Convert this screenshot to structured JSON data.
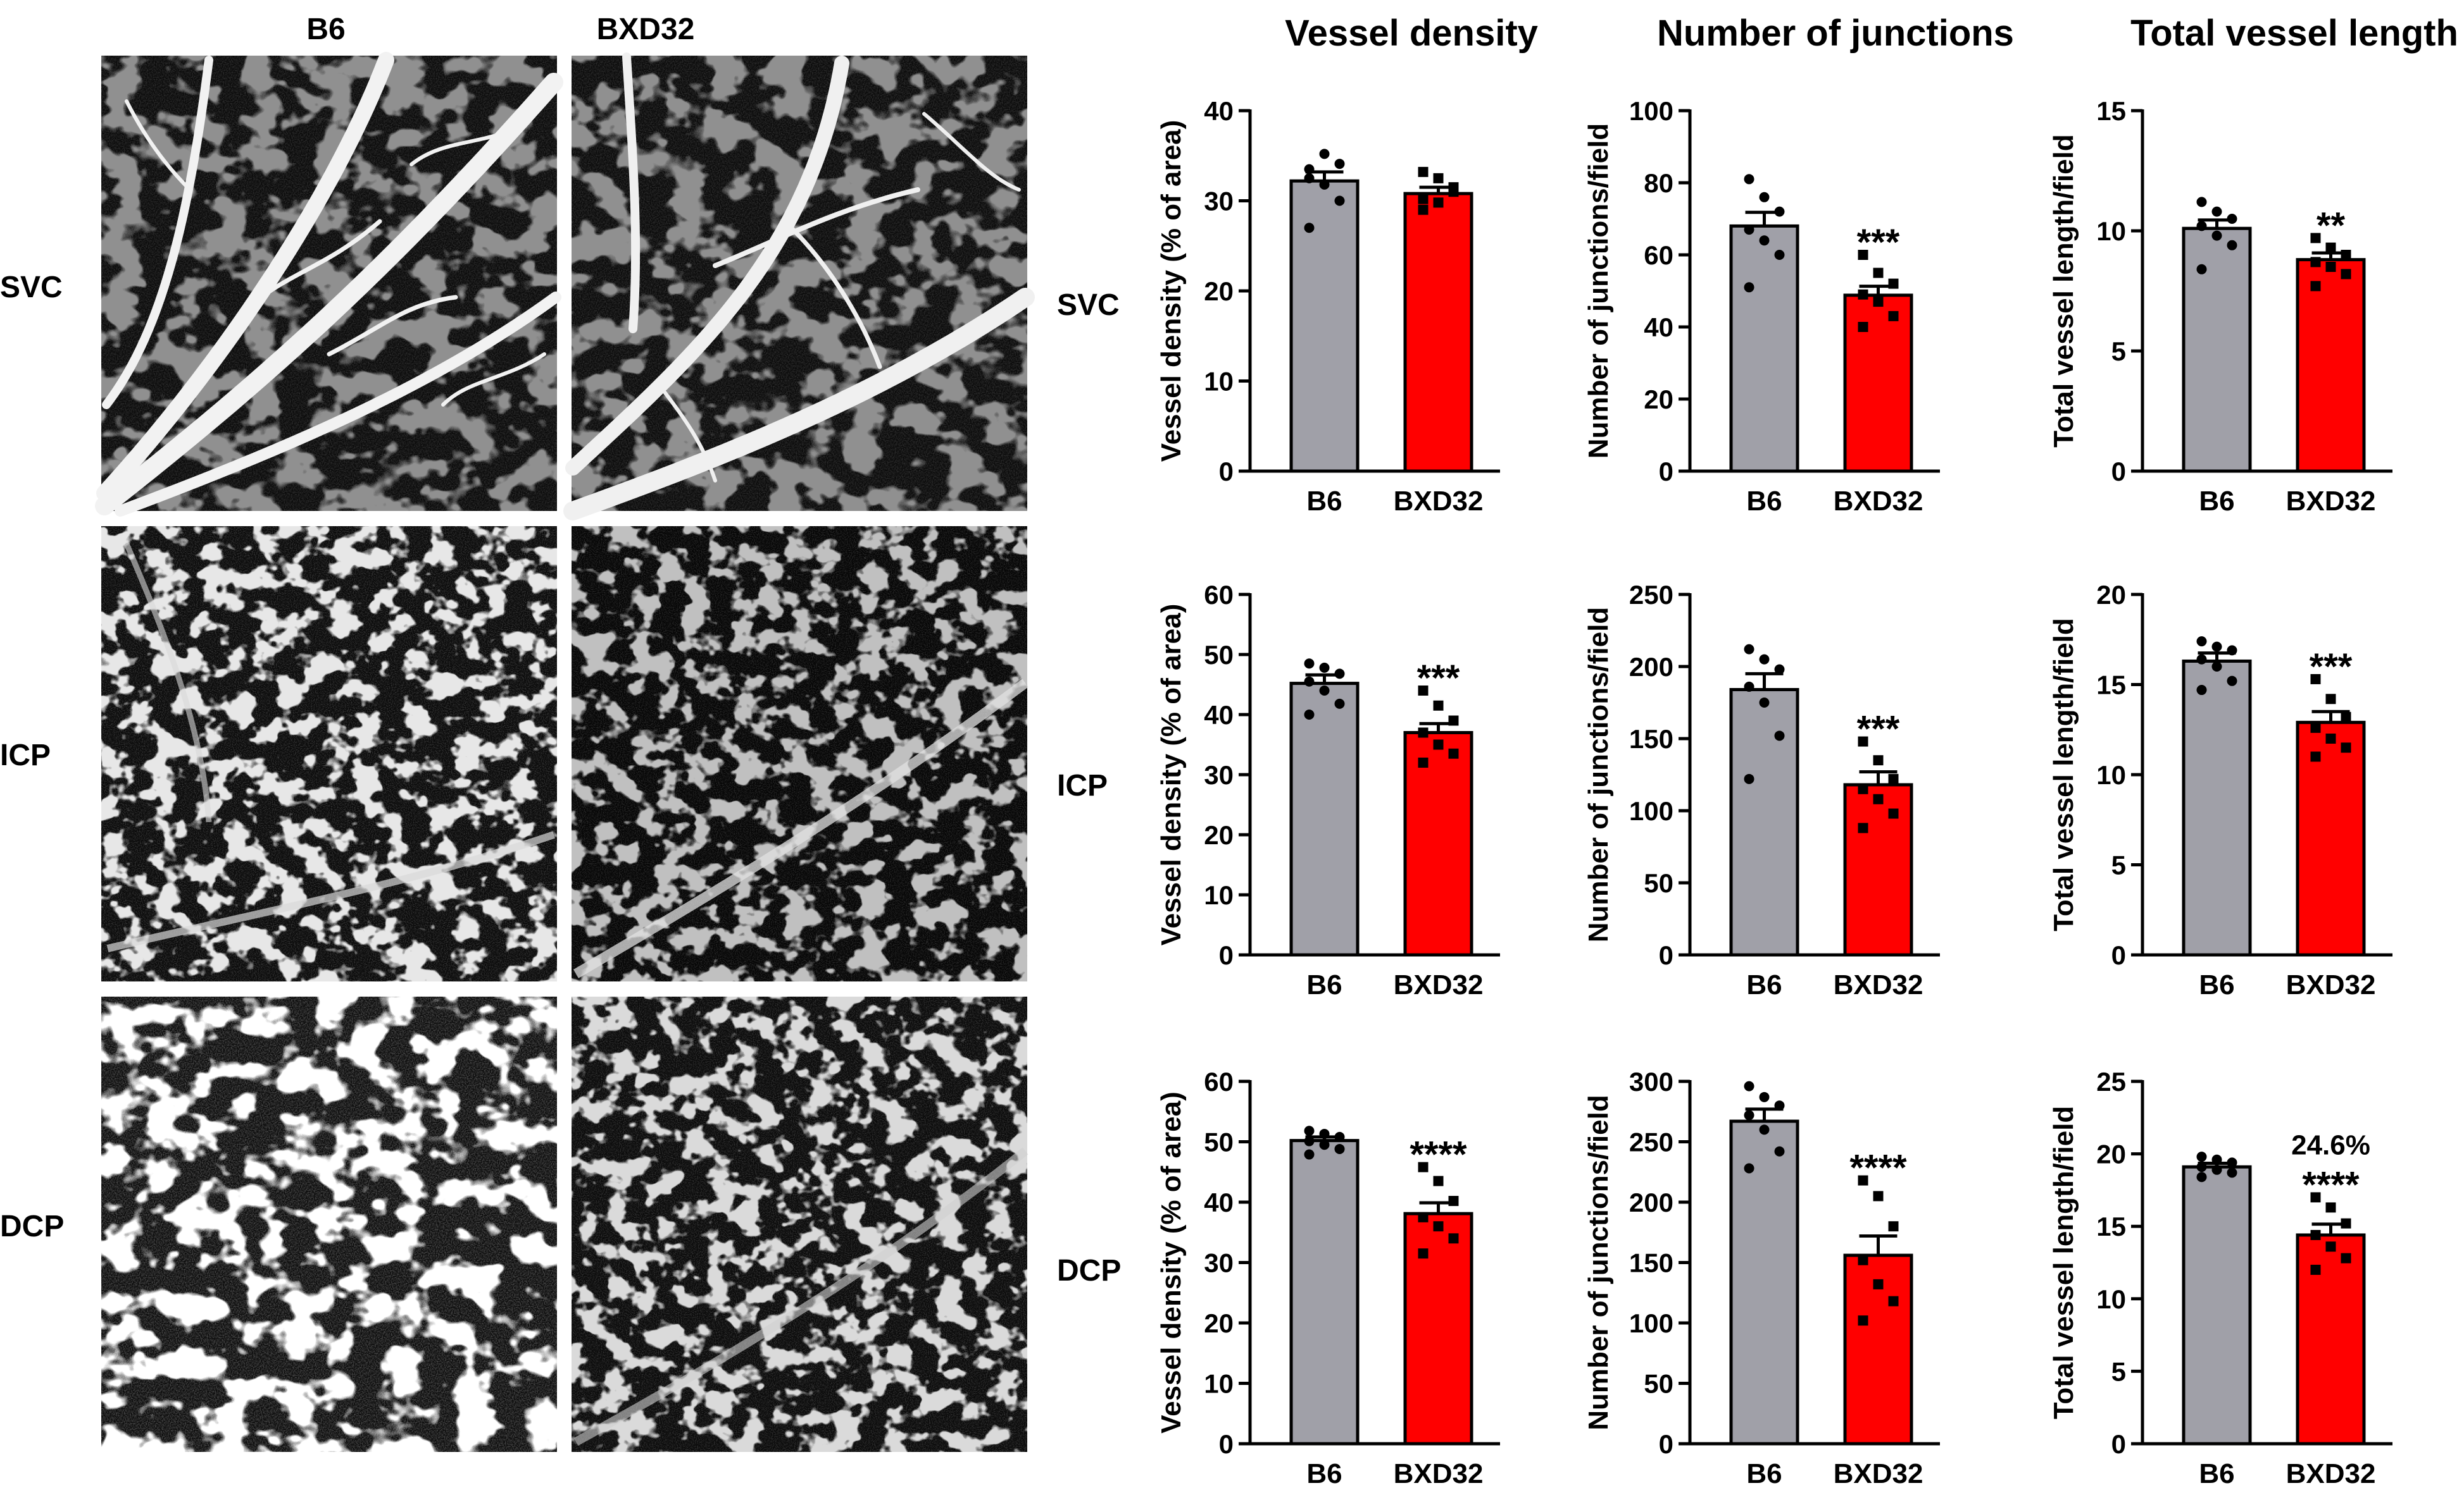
{
  "micrographs": {
    "columns": [
      "B6",
      "BXD32"
    ],
    "rows": [
      "SVC",
      "ICP",
      "DCP"
    ]
  },
  "row_labels": [
    "SVC",
    "ICP",
    "DCP"
  ],
  "column_titles": [
    "Vessel density",
    "Number of junctions",
    "Total vessel length"
  ],
  "colors": {
    "B6": "#a0a0a8",
    "BXD32": "#ff0000",
    "axis": "#000000"
  },
  "chart_data": [
    {
      "type": "bar",
      "row": "SVC",
      "metric": "Vessel density",
      "ylabel": "Vessel density (% of area)",
      "categories": [
        "B6",
        "BXD32"
      ],
      "ylim": [
        0,
        40
      ],
      "yticks": [
        0,
        10,
        20,
        30,
        40
      ],
      "values": [
        32.2,
        30.8
      ],
      "sem": [
        1.0,
        0.7
      ],
      "points": [
        [
          33.5,
          35.2,
          34.1,
          32.5,
          31.8,
          30.0,
          27.0
        ],
        [
          33.2,
          32.5,
          31.0,
          30.2,
          29.8,
          31.5,
          29.0
        ]
      ],
      "annotations": [
        "",
        ""
      ]
    },
    {
      "type": "bar",
      "row": "SVC",
      "metric": "Number of junctions",
      "ylabel": "Number of junctions/field",
      "categories": [
        "B6",
        "BXD32"
      ],
      "ylim": [
        0,
        100
      ],
      "yticks": [
        0,
        20,
        40,
        60,
        80,
        100
      ],
      "values": [
        68,
        48.8
      ],
      "sem": [
        3.8,
        2.5
      ],
      "points": [
        [
          81,
          76,
          72,
          67,
          64,
          60,
          51
        ],
        [
          60,
          55,
          52,
          49,
          47,
          43,
          40
        ]
      ],
      "annotations": [
        "",
        "***"
      ]
    },
    {
      "type": "bar",
      "row": "SVC",
      "metric": "Total vessel length",
      "ylabel": "Total vessel length/field",
      "categories": [
        "B6",
        "BXD32"
      ],
      "ylim": [
        0,
        15
      ],
      "yticks": [
        0,
        5,
        10,
        15
      ],
      "values": [
        10.1,
        8.8
      ],
      "sem": [
        0.35,
        0.28
      ],
      "points": [
        [
          11.2,
          10.8,
          10.5,
          10.2,
          9.8,
          9.4,
          8.4
        ],
        [
          9.7,
          9.3,
          9.0,
          8.7,
          8.5,
          8.2,
          7.7
        ]
      ],
      "annotations": [
        "",
        "**"
      ]
    },
    {
      "type": "bar",
      "row": "ICP",
      "metric": "Vessel density",
      "ylabel": "Vessel density (% of area)",
      "categories": [
        "B6",
        "BXD32"
      ],
      "ylim": [
        0,
        60
      ],
      "yticks": [
        0,
        10,
        20,
        30,
        40,
        50,
        60
      ],
      "values": [
        45.2,
        37
      ],
      "sem": [
        1.4,
        1.5
      ],
      "points": [
        [
          48.5,
          47.8,
          46.8,
          45.5,
          44.0,
          41.8,
          40.0
        ],
        [
          44.0,
          41.5,
          39.0,
          37.0,
          35.0,
          33.5,
          32.0
        ]
      ],
      "annotations": [
        "",
        "***"
      ]
    },
    {
      "type": "bar",
      "row": "ICP",
      "metric": "Number of junctions",
      "ylabel": "Number of junctions/field",
      "categories": [
        "B6",
        "BXD32"
      ],
      "ylim": [
        0,
        250
      ],
      "yticks": [
        0,
        50,
        100,
        150,
        200,
        250
      ],
      "values": [
        184,
        118
      ],
      "sem": [
        11,
        9
      ],
      "points": [
        [
          212,
          205,
          198,
          186,
          175,
          152,
          122
        ],
        [
          148,
          135,
          122,
          115,
          108,
          98,
          88
        ]
      ],
      "annotations": [
        "",
        "***"
      ]
    },
    {
      "type": "bar",
      "row": "ICP",
      "metric": "Total vessel length",
      "ylabel": "Total vessel length/field",
      "categories": [
        "B6",
        "BXD32"
      ],
      "ylim": [
        0,
        20
      ],
      "yticks": [
        0,
        5,
        10,
        15,
        20
      ],
      "values": [
        16.3,
        12.9
      ],
      "sem": [
        0.45,
        0.6
      ],
      "points": [
        [
          17.4,
          17.1,
          16.9,
          16.4,
          16.0,
          15.2,
          14.7
        ],
        [
          15.3,
          14.2,
          13.2,
          12.6,
          12.0,
          11.5,
          11.0
        ]
      ],
      "annotations": [
        "",
        "***"
      ]
    },
    {
      "type": "bar",
      "row": "DCP",
      "metric": "Vessel density",
      "ylabel": "Vessel density (% of area)",
      "categories": [
        "B6",
        "BXD32"
      ],
      "ylim": [
        0,
        60
      ],
      "yticks": [
        0,
        10,
        20,
        30,
        40,
        50,
        60
      ],
      "values": [
        50.2,
        38.1
      ],
      "sem": [
        0.6,
        1.8
      ],
      "points": [
        [
          51.8,
          51.3,
          50.8,
          50.1,
          49.5,
          48.8,
          47.9
        ],
        [
          45.8,
          43.5,
          40.2,
          37.5,
          36.0,
          34.0,
          31.5
        ]
      ],
      "annotations": [
        "",
        "****"
      ]
    },
    {
      "type": "bar",
      "row": "DCP",
      "metric": "Number of junctions",
      "ylabel": "Number of junctions/field",
      "categories": [
        "B6",
        "BXD32"
      ],
      "ylim": [
        0,
        300
      ],
      "yticks": [
        0,
        50,
        100,
        150,
        200,
        250,
        300
      ],
      "values": [
        267,
        156
      ],
      "sem": [
        10,
        16
      ],
      "points": [
        [
          296,
          287,
          280,
          272,
          260,
          242,
          228
        ],
        [
          218,
          205,
          180,
          152,
          132,
          118,
          102
        ]
      ],
      "annotations": [
        "",
        "****"
      ]
    },
    {
      "type": "bar",
      "row": "DCP",
      "metric": "Total vessel length",
      "ylabel": "Total vessel length/field",
      "categories": [
        "B6",
        "BXD32"
      ],
      "ylim": [
        0,
        25
      ],
      "yticks": [
        0,
        5,
        10,
        15,
        20,
        25
      ],
      "values": [
        19.1,
        14.4
      ],
      "sem": [
        0.25,
        0.75
      ],
      "points": [
        [
          19.8,
          19.6,
          19.4,
          19.1,
          18.9,
          18.7,
          18.4
        ],
        [
          17.0,
          16.3,
          15.2,
          14.4,
          13.6,
          12.8,
          12.0
        ]
      ],
      "annotations": [
        "24.6%",
        "****"
      ]
    }
  ]
}
